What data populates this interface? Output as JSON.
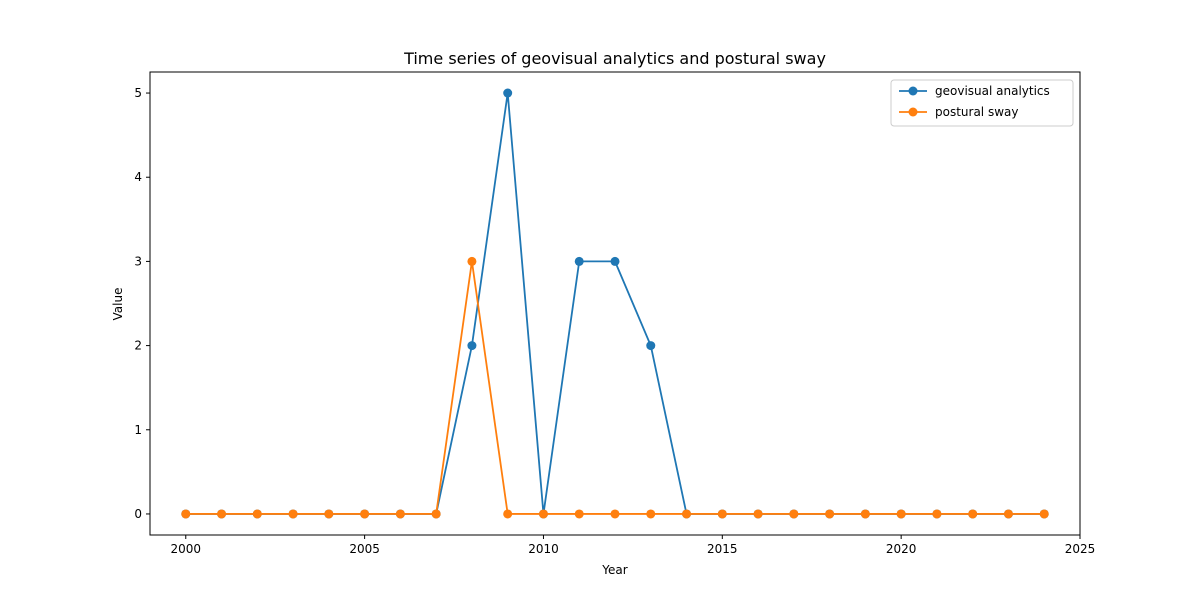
{
  "chart_data": {
    "type": "line",
    "title": "Time series of geovisual analytics and postural sway",
    "xlabel": "Year",
    "ylabel": "Value",
    "xlim": [
      1999,
      2025
    ],
    "ylim": [
      -0.25,
      5.25
    ],
    "x_ticks": [
      2000,
      2005,
      2010,
      2015,
      2020,
      2025
    ],
    "y_ticks": [
      0,
      1,
      2,
      3,
      4,
      5
    ],
    "x": [
      2000,
      2001,
      2002,
      2003,
      2004,
      2005,
      2006,
      2007,
      2008,
      2009,
      2010,
      2011,
      2012,
      2013,
      2014,
      2015,
      2016,
      2017,
      2018,
      2019,
      2020,
      2021,
      2022,
      2023,
      2024
    ],
    "series": [
      {
        "name": "geovisual analytics",
        "color": "#1f77b4",
        "values": [
          0,
          0,
          0,
          0,
          0,
          0,
          0,
          0,
          2,
          5,
          0,
          3,
          3,
          2,
          0,
          0,
          0,
          0,
          0,
          0,
          0,
          0,
          0,
          0,
          0
        ]
      },
      {
        "name": "postural sway",
        "color": "#ff7f0e",
        "values": [
          0,
          0,
          0,
          0,
          0,
          0,
          0,
          0,
          3,
          0,
          0,
          0,
          0,
          0,
          0,
          0,
          0,
          0,
          0,
          0,
          0,
          0,
          0,
          0,
          0
        ]
      }
    ],
    "grid": false,
    "legend": "top-right",
    "marker": "circle"
  }
}
